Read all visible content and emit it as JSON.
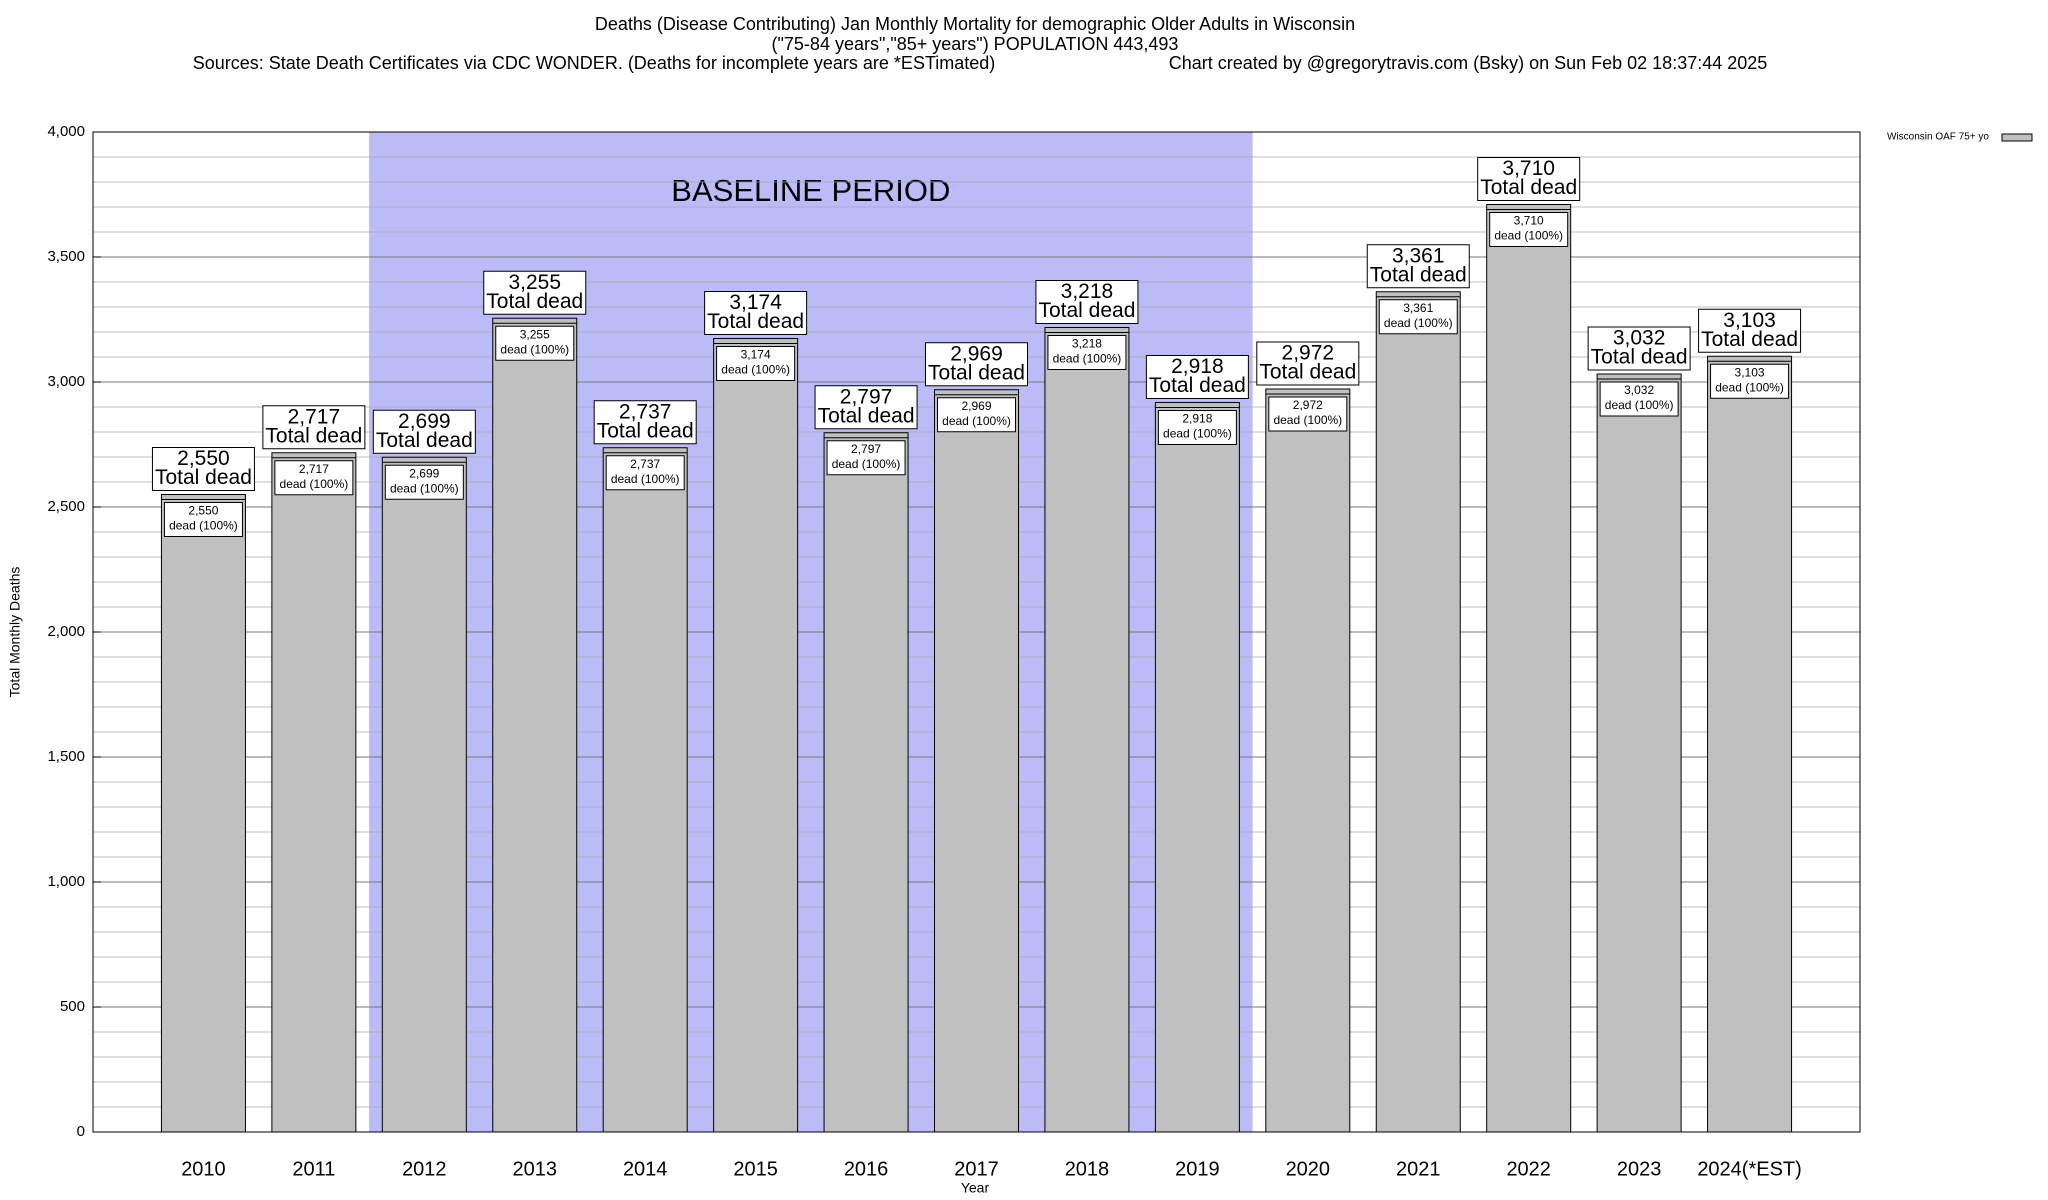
{
  "chart_data": {
    "type": "bar",
    "title": "Deaths (Disease Contributing) Jan Monthly Mortality for demographic Older Adults in Wisconsin",
    "subtitle": "(\"75-84 years\",\"85+ years\") POPULATION 443,493",
    "sources": "Sources: State Death Certificates via CDC WONDER. (Deaths for incomplete years are *ESTimated)",
    "credit": "Chart created by @gregorytravis.com (Bsky) on Sun Feb 02 18:37:44 2025",
    "xlabel": "Year",
    "ylabel": "Total Monthly Deaths",
    "categories": [
      "2010",
      "2011",
      "2012",
      "2013",
      "2014",
      "2015",
      "2016",
      "2017",
      "2018",
      "2019",
      "2020",
      "2021",
      "2022",
      "2023",
      "2024(*EST)"
    ],
    "series": [
      {
        "name": "Wisconsin OAF 75+ yo",
        "color": "#c0c0c0",
        "values": [
          2550,
          2717,
          2699,
          3255,
          2737,
          3174,
          2797,
          2969,
          3218,
          2918,
          2972,
          3361,
          3710,
          3032,
          3103
        ],
        "value_labels": [
          "2,550",
          "2,717",
          "2,699",
          "3,255",
          "2,737",
          "3,174",
          "2,797",
          "2,969",
          "3,218",
          "2,918",
          "2,972",
          "3,361",
          "3,710",
          "3,032",
          "3,103"
        ]
      }
    ],
    "total_label": "Total dead",
    "share_label": "dead (100%)",
    "highlight": {
      "label": "BASELINE PERIOD",
      "from": "2012",
      "to": "2019",
      "color": "#bbbbf8"
    },
    "ylim": [
      0,
      4000
    ],
    "yticks": [
      0,
      500,
      {
        "value": 1000,
        "label": "1,000"
      },
      {
        "value": 1500,
        "label": "1,500"
      },
      {
        "value": 2000,
        "label": "2,000"
      },
      {
        "value": 2500,
        "label": "2,500"
      },
      {
        "value": 3000,
        "label": "3,000"
      },
      {
        "value": 3500,
        "label": "3,500"
      },
      {
        "value": 4000,
        "label": "4,000"
      }
    ],
    "minor_grid": 100,
    "grid": true,
    "legend": "right"
  }
}
